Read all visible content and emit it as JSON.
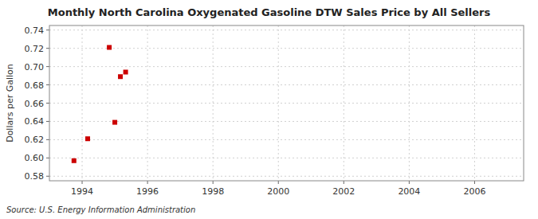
{
  "chart_data": {
    "type": "scatter",
    "title": "Monthly North Carolina Oxygenated Gasoline DTW Sales Price by All Sellers",
    "ylabel": "Dollars per Gallon",
    "source": "Source: U.S. Energy Information Administration",
    "x": [
      1993.75,
      1994.17,
      1994.83,
      1995.0,
      1995.17,
      1995.33
    ],
    "values": [
      0.597,
      0.621,
      0.721,
      0.639,
      0.689,
      0.694
    ],
    "xlim": [
      1993.0,
      2007.5
    ],
    "ylim": [
      0.575,
      0.745
    ],
    "xticks": [
      1994,
      1996,
      1998,
      2000,
      2002,
      2004,
      2006
    ],
    "yticks": [
      0.58,
      {
        "value": 0.6,
        "label": "0.60"
      },
      0.62,
      0.64,
      0.66,
      0.68,
      {
        "value": 0.7,
        "label": "0.70"
      },
      0.72,
      0.74
    ],
    "grid": true,
    "color": "#cc0000",
    "marker": "square"
  }
}
